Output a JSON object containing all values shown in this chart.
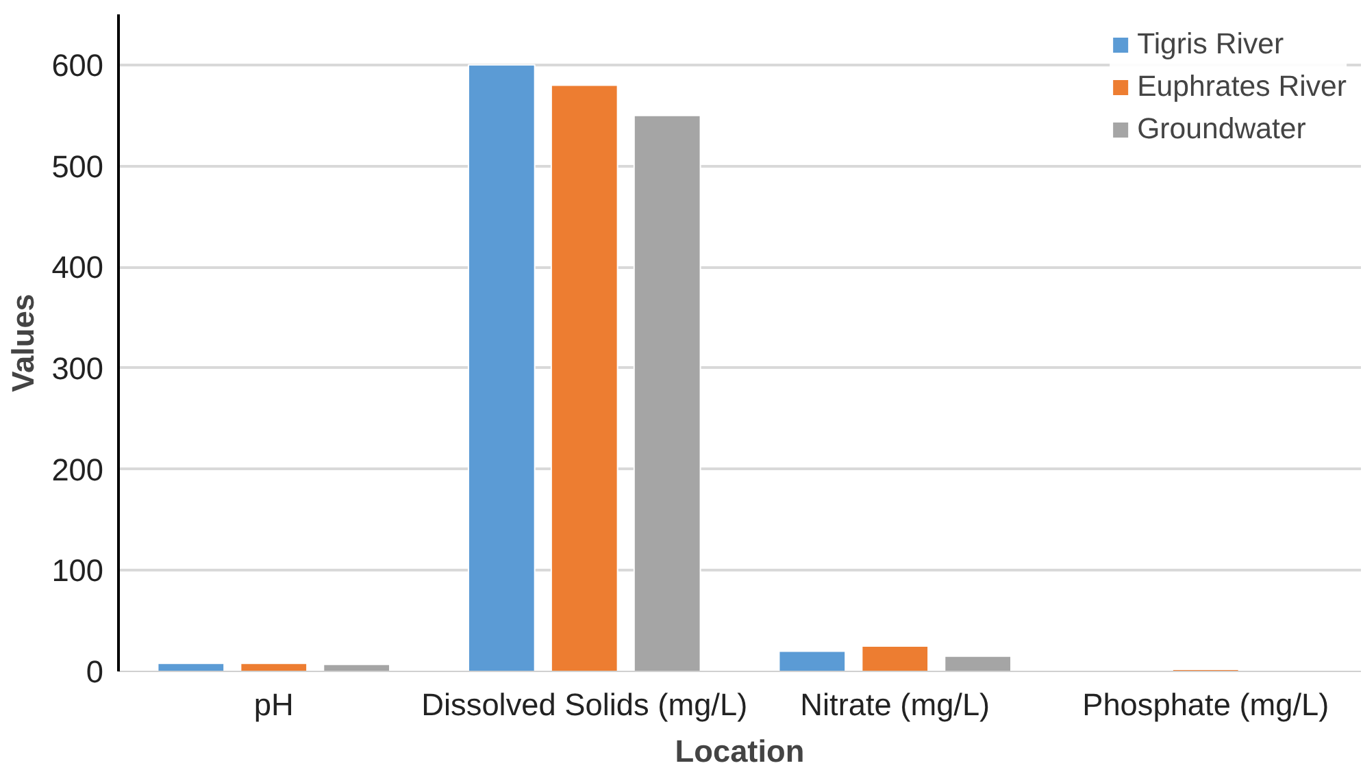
{
  "chart_data": {
    "type": "bar",
    "xlabel": "Location",
    "ylabel": "Values",
    "categories": [
      "pH",
      "Dissolved Solids (mg/L)",
      "Nitrate (mg/L)",
      "Phosphate (mg/L)"
    ],
    "series": [
      {
        "name": "Tigris River",
        "color": "#5b9bd5",
        "values": [
          8,
          600,
          20,
          null
        ]
      },
      {
        "name": "Euphrates River",
        "color": "#ed7d31",
        "values": [
          8,
          580,
          25,
          2
        ]
      },
      {
        "name": "Groundwater",
        "color": "#a5a5a5",
        "values": [
          7,
          550,
          15,
          null
        ]
      }
    ],
    "ylim": [
      0,
      650
    ],
    "yticks": [
      0,
      100,
      200,
      300,
      400,
      500,
      600
    ],
    "grid": "y",
    "legend": "top right"
  }
}
